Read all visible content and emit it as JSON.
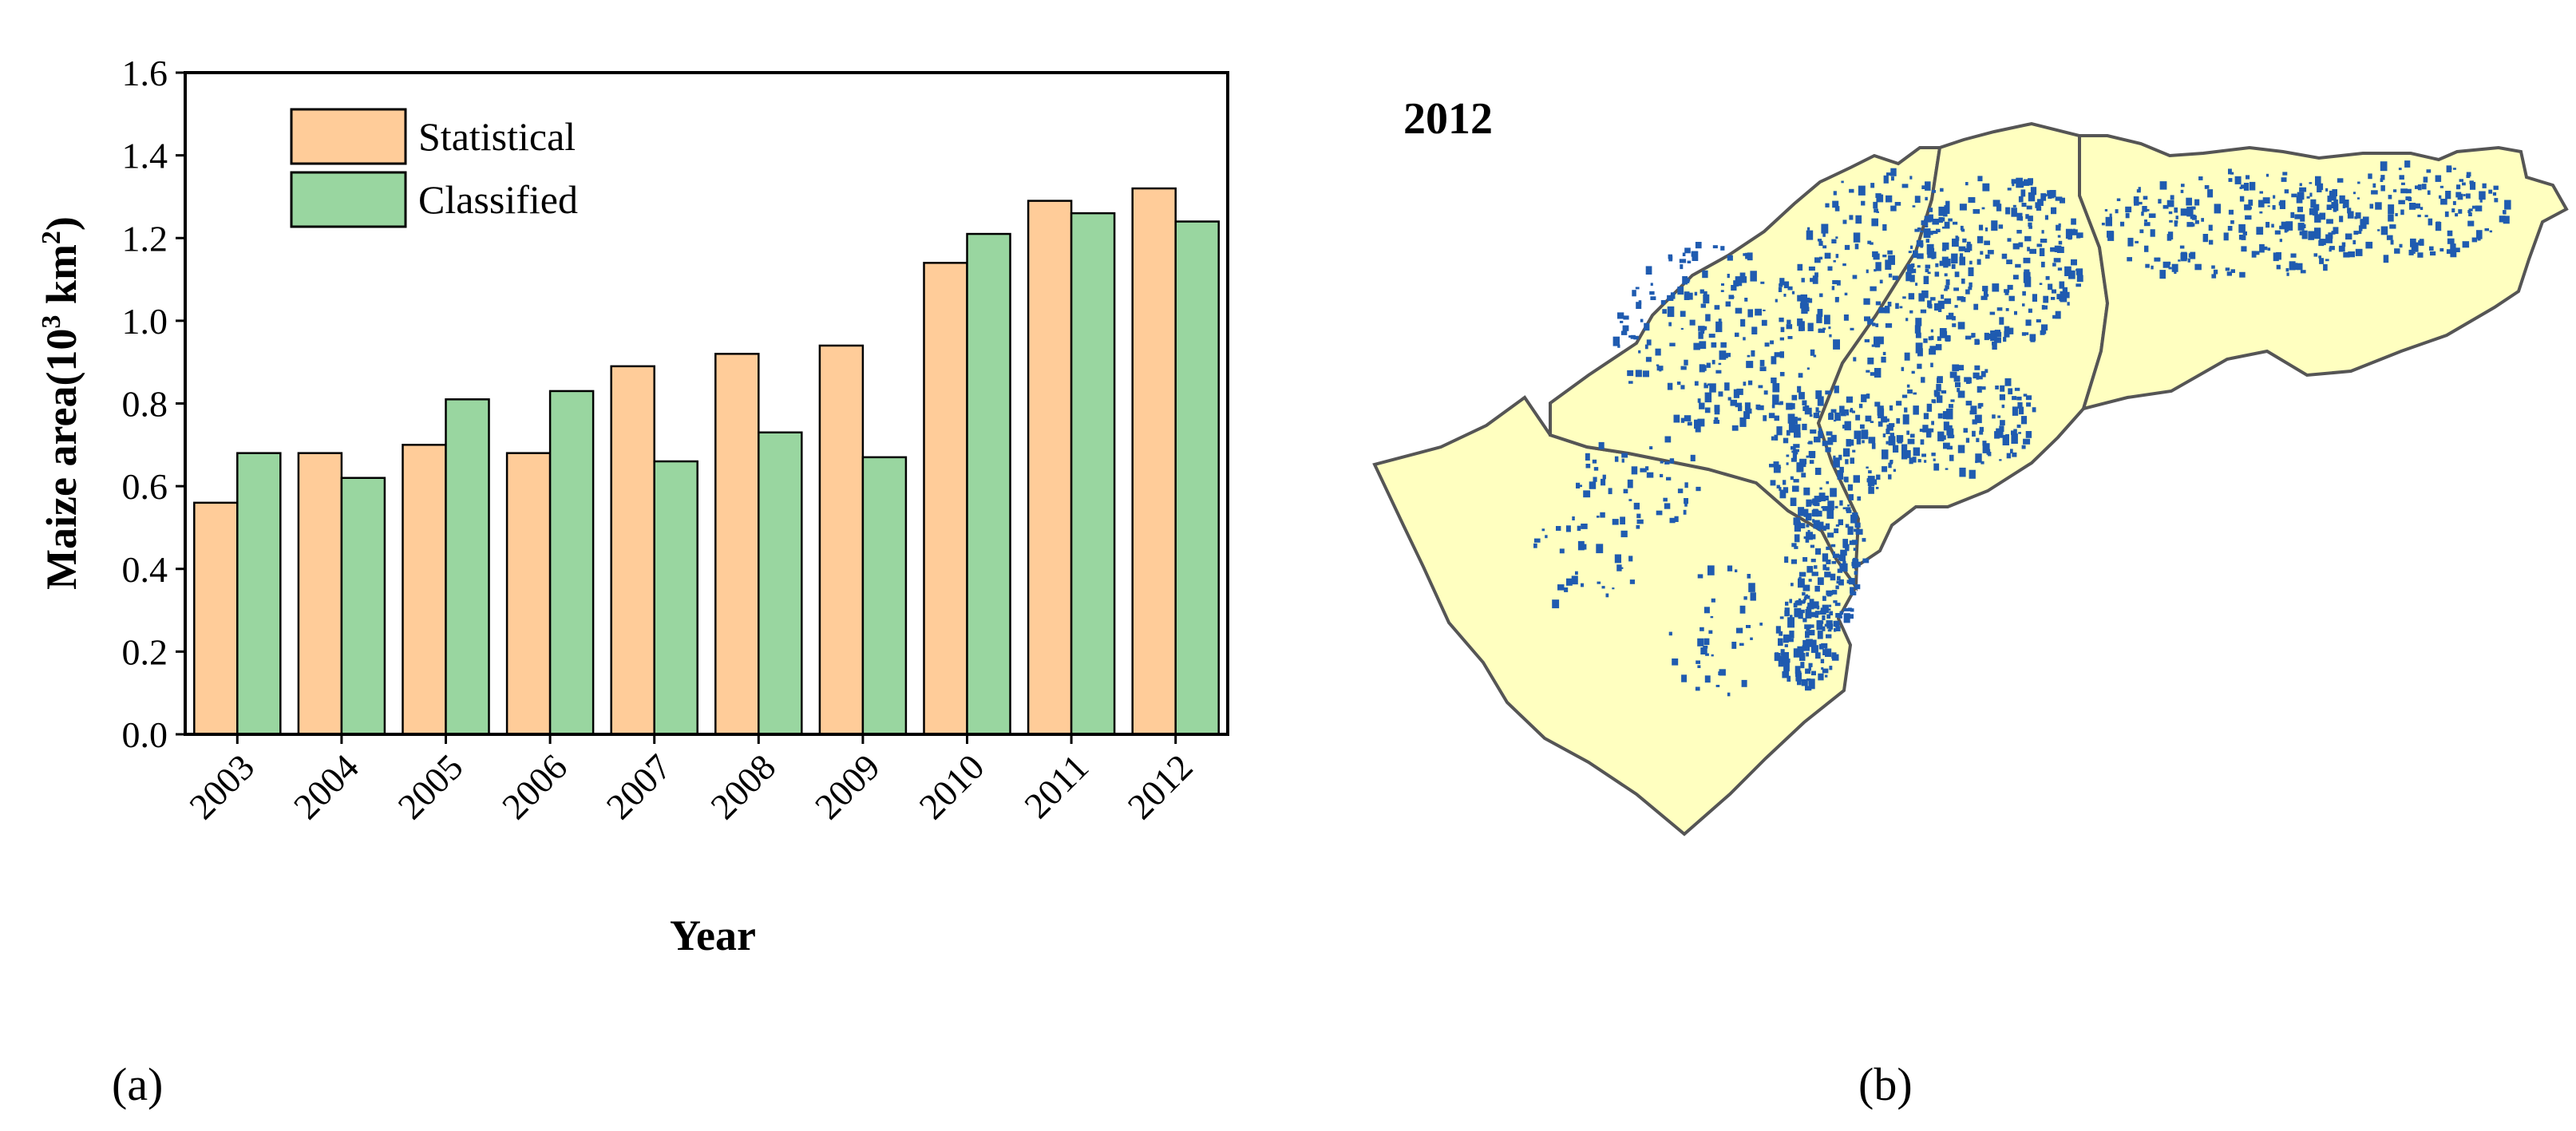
{
  "chart_data": {
    "type": "bar",
    "categories": [
      "2003",
      "2004",
      "2005",
      "2006",
      "2007",
      "2008",
      "2009",
      "2010",
      "2011",
      "2012"
    ],
    "series": [
      {
        "name": "Statistical",
        "values": [
          0.56,
          0.68,
          0.7,
          0.68,
          0.89,
          0.92,
          0.94,
          1.14,
          1.29,
          1.32
        ],
        "color": "#FFCC99"
      },
      {
        "name": "Classified",
        "values": [
          0.68,
          0.62,
          0.81,
          0.83,
          0.66,
          0.73,
          0.67,
          1.21,
          1.26,
          1.24
        ],
        "color": "#99D6A0"
      }
    ],
    "xlabel": "Year",
    "ylabel_main": "Maize area(10",
    "ylabel_sup1": "3",
    "ylabel_mid": " km",
    "ylabel_sup2": "2",
    "ylabel_end": ")",
    "ylim": [
      0,
      1.6
    ],
    "yticks": [
      "0.0",
      "0.2",
      "0.4",
      "0.6",
      "0.8",
      "1.0",
      "1.2",
      "1.4",
      "1.6"
    ],
    "legend_position": "top-left",
    "grid": false
  },
  "panels": {
    "a_label": "(a)",
    "b_label": "(b)",
    "map_year": "2012",
    "map_fill_color": "#FFFFC0",
    "map_crop_color": "#1F5BB0",
    "map_border_color": "#555555"
  }
}
